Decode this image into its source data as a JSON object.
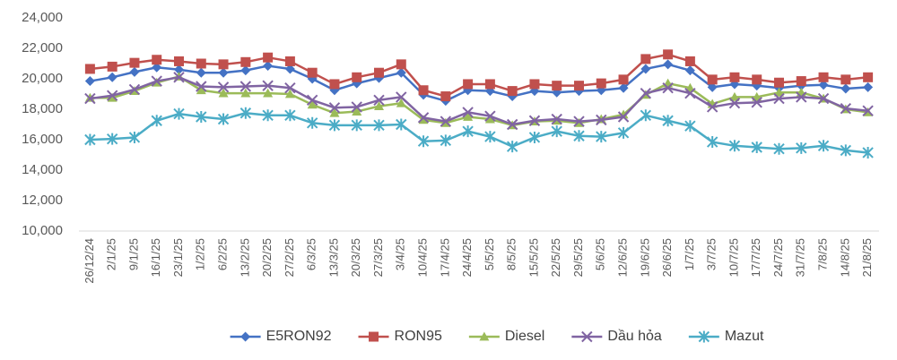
{
  "chart_data": {
    "type": "line",
    "categories": [
      "26/12/24",
      "2/1/25",
      "9/1/25",
      "16/1/25",
      "23/1/25",
      "1/2/25",
      "6/2/25",
      "13/2/25",
      "20/2/25",
      "27/2/25",
      "6/3/25",
      "13/3/25",
      "20/3/25",
      "27/3/25",
      "3/4/25",
      "10/4/25",
      "17/4/25",
      "24/4/25",
      "5/5/25",
      "8/5/25",
      "15/5/25",
      "22/5/25",
      "29/5/25",
      "5/6/25",
      "12/6/25",
      "19/6/25",
      "26/6/25",
      "1/7/25",
      "3/7/25",
      "10/7/25",
      "17/7/25",
      "24/7/25",
      "31/7/25",
      "7/8/25",
      "14/8/25",
      "21/8/25"
    ],
    "series": [
      {
        "name": "E5RON92",
        "color": "#4472c4",
        "marker": "diamond",
        "values": [
          19850,
          20100,
          20450,
          20750,
          20600,
          20400,
          20400,
          20550,
          20850,
          20650,
          20000,
          19250,
          19700,
          20050,
          20400,
          18950,
          18550,
          19250,
          19200,
          18850,
          19200,
          19100,
          19200,
          19250,
          19400,
          20650,
          20950,
          20550,
          19450,
          19650,
          19550,
          19400,
          19550,
          19600,
          19350,
          19450
        ]
      },
      {
        "name": "RON95",
        "color": "#c0504d",
        "marker": "square",
        "values": [
          20650,
          20800,
          21050,
          21250,
          21150,
          21000,
          20950,
          21100,
          21400,
          21150,
          20400,
          19650,
          20100,
          20400,
          20950,
          19250,
          18850,
          19650,
          19650,
          19200,
          19650,
          19550,
          19550,
          19700,
          19950,
          21300,
          21600,
          21150,
          19950,
          20100,
          19950,
          19750,
          19850,
          20100,
          19950,
          20100
        ]
      },
      {
        "name": "Diesel",
        "color": "#9bbb59",
        "marker": "triangle",
        "values": [
          18750,
          18750,
          19200,
          19750,
          20150,
          19250,
          19050,
          19050,
          19050,
          19000,
          18300,
          17750,
          17850,
          18200,
          18400,
          17300,
          17100,
          17500,
          17350,
          16950,
          17200,
          17250,
          17100,
          17350,
          17650,
          18950,
          19700,
          19400,
          18350,
          18800,
          18800,
          19100,
          19100,
          18700,
          18000,
          17800
        ]
      },
      {
        "name": "Dầu hỏa",
        "color": "#8064a2",
        "marker": "x",
        "values": [
          18700,
          18900,
          19300,
          19850,
          20100,
          19500,
          19450,
          19500,
          19550,
          19400,
          18600,
          18100,
          18150,
          18600,
          18800,
          17450,
          17200,
          17800,
          17550,
          17000,
          17250,
          17350,
          17200,
          17300,
          17500,
          19050,
          19400,
          19050,
          18150,
          18400,
          18450,
          18700,
          18800,
          18700,
          18050,
          17900
        ]
      },
      {
        "name": "Mazut",
        "color": "#4bacc6",
        "marker": "star",
        "values": [
          16000,
          16050,
          16150,
          17250,
          17700,
          17500,
          17350,
          17750,
          17600,
          17600,
          17100,
          16950,
          16950,
          16950,
          17000,
          15900,
          15950,
          16550,
          16200,
          15550,
          16150,
          16550,
          16250,
          16200,
          16450,
          17600,
          17250,
          16900,
          15850,
          15600,
          15500,
          15400,
          15450,
          15600,
          15300,
          15150
        ]
      }
    ],
    "ylim": [
      10000,
      24000
    ],
    "yticks": [
      {
        "value": 10000,
        "label": "10,000"
      },
      {
        "value": 12000,
        "label": "12,000"
      },
      {
        "value": 14000,
        "label": "14,000"
      },
      {
        "value": 16000,
        "label": "16,000"
      },
      {
        "value": 18000,
        "label": "18,000"
      },
      {
        "value": 20000,
        "label": "20,000"
      },
      {
        "value": 22000,
        "label": "22,000"
      },
      {
        "value": 24000,
        "label": "24,000"
      }
    ],
    "grid": false,
    "legend": "bottom"
  }
}
